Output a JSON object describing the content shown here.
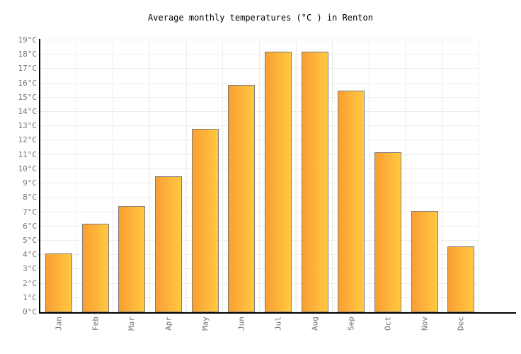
{
  "page": {
    "background": "#FFFFFF"
  },
  "chart_data": {
    "type": "bar",
    "title": "Average monthly temperatures (°C ) in Renton",
    "categories": [
      "Jan",
      "Feb",
      "Mar",
      "Apr",
      "May",
      "Jun",
      "Jul",
      "Aug",
      "Sep",
      "Oct",
      "Nov",
      "Dec"
    ],
    "values": [
      4.1,
      6.2,
      7.4,
      9.5,
      12.8,
      15.9,
      18.2,
      18.2,
      15.5,
      11.2,
      7.1,
      4.6
    ],
    "unit": "°C",
    "xlabel": "",
    "ylabel": "",
    "ylim": [
      0,
      19
    ],
    "ytick_step": 1,
    "ytick_suffix": "°C",
    "grid": true,
    "legend": null,
    "x_label_rotation_deg": -90,
    "colors": {
      "bar_gradient_left": "#FA9E33",
      "bar_gradient_right": "#FFC941",
      "bar_border": "#7D7D7D",
      "grid_line": "#EDEDED",
      "axis_line": "#000000",
      "tick_label": "#777777",
      "title_text": "#000000",
      "background": "#FFFFFF"
    }
  }
}
